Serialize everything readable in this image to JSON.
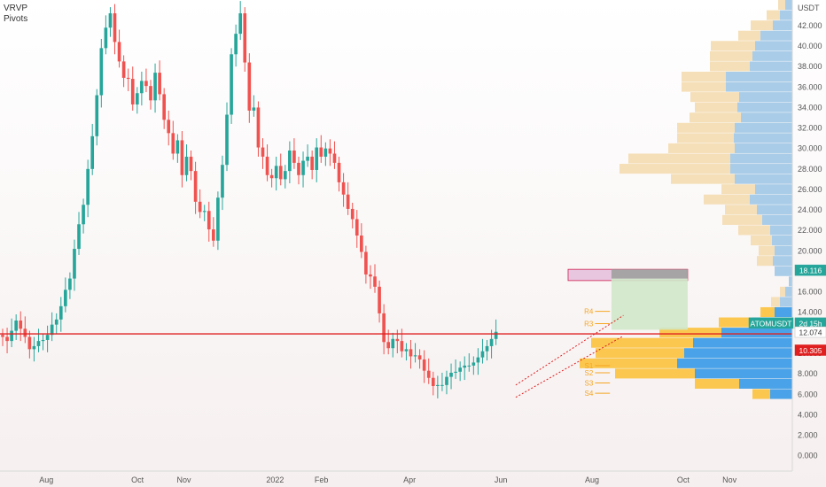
{
  "indicators": [
    "VRVP",
    "Pivots"
  ],
  "colors": {
    "up": "#26a69a",
    "down": "#ef5350",
    "hline": "#e02020",
    "pivot": "#f5a623",
    "vp_blue": "#a9cce8",
    "vp_tan": "#f5dfb8",
    "vp_blue_active": "#4aa3e8",
    "vp_yellow_active": "#fbc74f",
    "zone_fill": "#e2b6d8",
    "zone_stroke": "#d02050",
    "target_fill": "#cfe8c9",
    "stop_fill": "#9ea09e",
    "bg_top": "#ffffff",
    "bg_bottom": "#f6efef",
    "price_tag": "#26a69a",
    "red_tag": "#e02020"
  },
  "chart_data": {
    "type": "candlestick",
    "symbol": "ATOMUSDT",
    "y_unit": "USDT",
    "ylim": [
      -1.5,
      44.5
    ],
    "y_ticks": [
      "0.000",
      "2.000",
      "4.000",
      "6.000",
      "8.000",
      "10.000",
      "12.000",
      "14.000",
      "16.000",
      "18.000",
      "20.000",
      "22.000",
      "24.000",
      "26.000",
      "28.000",
      "30.000",
      "32.000",
      "34.000",
      "36.000",
      "38.000",
      "40.000",
      "42.000"
    ],
    "x_ticks": [
      {
        "label": "Aug",
        "day": 31
      },
      {
        "label": "Oct",
        "day": 92
      },
      {
        "label": "Nov",
        "day": 123
      },
      {
        "label": "2022",
        "day": 184
      },
      {
        "label": "Feb",
        "day": 215
      },
      {
        "label": "Apr",
        "day": 274
      },
      {
        "label": "Jun",
        "day": 335
      },
      {
        "label": "Aug",
        "day": 396
      },
      {
        "label": "Oct",
        "day": 457
      },
      {
        "label": "Nov",
        "day": 488
      }
    ],
    "x_range_days": [
      0,
      530
    ],
    "candle_step_days": 3,
    "closes": [
      11.6,
      11.2,
      12.2,
      13.2,
      12.4,
      11.6,
      10.4,
      10.7,
      11.2,
      11.3,
      11.8,
      12.8,
      13.3,
      14.6,
      16.2,
      17.3,
      20.2,
      22.6,
      24.5,
      28,
      31.2,
      35.2,
      39.8,
      41.8,
      43.2,
      40.4,
      38.5,
      36.9,
      36.8,
      34.3,
      35.4,
      36.6,
      36.1,
      34.7,
      37.4,
      35.3,
      32.8,
      31.5,
      29.5,
      30.8,
      27.4,
      29.2,
      27.8,
      24.8,
      23.8,
      23.9,
      22.1,
      21,
      25.2,
      28.4,
      33.3,
      39.2,
      41.2,
      43.2,
      38.4,
      33.7,
      34,
      30.1,
      29.2,
      27.4,
      27.1,
      28.3,
      27,
      27.8,
      29.8,
      28.6,
      27.4,
      28.8,
      29.2,
      27.9,
      30.1,
      29.2,
      30,
      29.5,
      28.6,
      26.7,
      25.5,
      24.1,
      23.1,
      21.5,
      19.9,
      17.7,
      17.5,
      16.5,
      13.9,
      11.1,
      10.5,
      11.4,
      11.2,
      10.2,
      10.4,
      9.7,
      9.8,
      9.4,
      8.3,
      7.6,
      6.8,
      6.9,
      6.9,
      7.7,
      8.1,
      8.2,
      8.6,
      8.8,
      8.8,
      9.1,
      9.6,
      10.2,
      10.7,
      11.4,
      12.1
    ],
    "opens": [
      11.8,
      11.6,
      11.2,
      12.2,
      13.2,
      12.4,
      11.6,
      10.4,
      10.7,
      11.2,
      11.3,
      11.8,
      12.8,
      13.3,
      14.6,
      16.2,
      17.3,
      20.2,
      22.6,
      24.5,
      28,
      31.2,
      35.2,
      39.8,
      41.8,
      43.2,
      40.4,
      38.5,
      36.9,
      36.8,
      34.3,
      35.4,
      36.6,
      36.1,
      34.7,
      37.4,
      35.3,
      32.8,
      31.5,
      29.5,
      30.8,
      27.4,
      29.2,
      27.8,
      24.8,
      23.8,
      23.9,
      22.1,
      21,
      25.2,
      28.4,
      33.3,
      39.2,
      41.2,
      43.2,
      38.4,
      33.7,
      34,
      30.1,
      29.2,
      27.4,
      27.1,
      28.3,
      27,
      27.8,
      29.8,
      28.6,
      27.4,
      28.8,
      29.2,
      27.9,
      30.1,
      29.2,
      30,
      29.5,
      28.6,
      26.7,
      25.5,
      24.1,
      23.1,
      21.5,
      19.9,
      17.7,
      17.5,
      16.5,
      13.9,
      11.1,
      10.5,
      11.4,
      11.2,
      10.2,
      10.4,
      9.7,
      9.8,
      9.4,
      8.3,
      7.6,
      6.8,
      6.9,
      6.9,
      7.7,
      8.1,
      8.2,
      8.6,
      8.8,
      8.8,
      9.1,
      9.6,
      10.2,
      10.7,
      11.4
    ],
    "hlines": [
      {
        "value": 11.9
      }
    ],
    "zone": {
      "day_start": 380,
      "day_end": 460,
      "y_low": 17.1,
      "y_high": 18.2
    },
    "position": {
      "day_start": 409,
      "day_end": 460,
      "entry": 12.3,
      "target": 17.3,
      "stop": 18.2
    },
    "channel": {
      "day_start": 345,
      "day_end": 417,
      "lower": [
        5.7,
        11.7
      ],
      "upper": [
        6.9,
        13.7
      ]
    },
    "pivots": {
      "day_start": 398,
      "day_end": 408,
      "levels": [
        {
          "label": "R4",
          "value": 14.1
        },
        {
          "label": "R3",
          "value": 12.9
        },
        {
          "label": "S1",
          "value": 8.8
        },
        {
          "label": "S2",
          "value": 8.1
        },
        {
          "label": "S3",
          "value": 7.1
        },
        {
          "label": "S4",
          "value": 6.1
        }
      ]
    },
    "volume_profile": [
      {
        "low": 5.5,
        "high": 6.5,
        "up": 25,
        "down": 20
      },
      {
        "low": 6.5,
        "high": 7.5,
        "up": 60,
        "down": 50
      },
      {
        "low": 7.5,
        "high": 8.5,
        "up": 110,
        "down": 90
      },
      {
        "low": 8.5,
        "high": 9.5,
        "up": 130,
        "down": 110
      },
      {
        "low": 9.5,
        "high": 10.5,
        "up": 122,
        "down": 100
      },
      {
        "low": 10.5,
        "high": 11.5,
        "up": 112,
        "down": 115
      },
      {
        "low": 11.5,
        "high": 12.5,
        "up": 80,
        "down": 70
      },
      {
        "low": 12.5,
        "high": 13.5,
        "up": 45,
        "down": 38
      },
      {
        "low": 13.5,
        "high": 14.5,
        "up": 20,
        "down": 16
      },
      {
        "low": 14.5,
        "high": 15.5,
        "up": 14,
        "down": 10
      },
      {
        "low": 15.5,
        "high": 16.5,
        "up": 8,
        "down": 6
      },
      {
        "low": 16.5,
        "high": 17.5,
        "up": 4,
        "down": 0
      },
      {
        "low": 17.5,
        "high": 18.5,
        "up": 20,
        "down": 0
      },
      {
        "low": 18.5,
        "high": 19.5,
        "up": 22,
        "down": 18
      },
      {
        "low": 19.5,
        "high": 20.5,
        "up": 20,
        "down": 18
      },
      {
        "low": 20.5,
        "high": 21.5,
        "up": 23,
        "down": 24
      },
      {
        "low": 21.5,
        "high": 22.5,
        "up": 25,
        "down": 36
      },
      {
        "low": 22.5,
        "high": 23.5,
        "up": 34,
        "down": 45
      },
      {
        "low": 23.5,
        "high": 24.5,
        "up": 40,
        "down": 36
      },
      {
        "low": 24.5,
        "high": 25.5,
        "up": 48,
        "down": 52
      },
      {
        "low": 25.5,
        "high": 26.5,
        "up": 42,
        "down": 38
      },
      {
        "low": 26.5,
        "high": 27.5,
        "up": 65,
        "down": 72
      },
      {
        "low": 27.5,
        "high": 28.5,
        "up": 70,
        "down": 125
      },
      {
        "low": 28.5,
        "high": 29.5,
        "up": 70,
        "down": 115
      },
      {
        "low": 29.5,
        "high": 30.5,
        "up": 65,
        "down": 75
      },
      {
        "low": 30.5,
        "high": 31.5,
        "up": 66,
        "down": 64
      },
      {
        "low": 31.5,
        "high": 32.5,
        "up": 65,
        "down": 65
      },
      {
        "low": 32.5,
        "high": 33.5,
        "up": 58,
        "down": 58
      },
      {
        "low": 33.5,
        "high": 34.5,
        "up": 62,
        "down": 48
      },
      {
        "low": 34.5,
        "high": 35.5,
        "up": 60,
        "down": 55
      },
      {
        "low": 35.5,
        "high": 36.5,
        "up": 75,
        "down": 50
      },
      {
        "low": 36.5,
        "high": 37.5,
        "up": 75,
        "down": 50
      },
      {
        "low": 37.5,
        "high": 38.5,
        "up": 48,
        "down": 45
      },
      {
        "low": 38.5,
        "high": 39.5,
        "up": 45,
        "down": 48
      },
      {
        "low": 39.5,
        "high": 40.5,
        "up": 42,
        "down": 50
      },
      {
        "low": 40.5,
        "high": 41.5,
        "up": 36,
        "down": 25
      },
      {
        "low": 41.5,
        "high": 42.5,
        "up": 22,
        "down": 25
      },
      {
        "low": 42.5,
        "high": 43.5,
        "up": 14,
        "down": 15
      },
      {
        "low": 43.5,
        "high": 44.5,
        "up": 8,
        "down": 8
      }
    ],
    "price_labels": [
      {
        "text": "18.116",
        "value": 18.116,
        "color": "#26a69a"
      },
      {
        "text": "ATOMUSDT",
        "value": 12.95,
        "color": "#26a69a"
      },
      {
        "text": "2d 15h",
        "value": 12.95,
        "color": "#26a69a"
      },
      {
        "text": "12.074",
        "value": 12.074,
        "color": "#ffffff",
        "text_color": "#333333"
      },
      {
        "text": "10.305",
        "value": 10.305,
        "color": "#e02020"
      }
    ]
  }
}
